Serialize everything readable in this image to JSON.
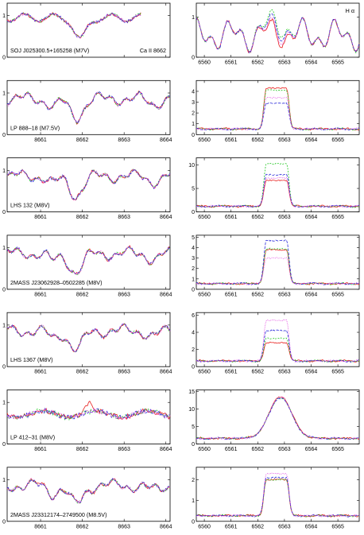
{
  "figure": {
    "left_header": "Ca II 8662",
    "right_header": "H α",
    "ca_x_ticks": [
      "8661",
      "8662",
      "8663",
      "8664"
    ],
    "ha_x_ticks": [
      "6560",
      "6561",
      "6562",
      "6563",
      "6564",
      "6565"
    ]
  },
  "colors": {
    "red": "#e8201e",
    "green": "#22c722",
    "blue": "#2b2bd9",
    "magenta": "#e040e0"
  },
  "chart_data": [
    {
      "type": "line",
      "panel": "Ca II 8662",
      "row": 1,
      "label": "SOJ J025300.5+165258 (M7V)",
      "xlim": [
        8660.2,
        8664.1
      ],
      "ylim": [
        0,
        1.3
      ],
      "yticks": [
        0,
        1
      ]
    },
    {
      "type": "line",
      "panel": "H α",
      "row": 1,
      "xlim": [
        6559.7,
        6565.8
      ],
      "ylim": [
        0,
        1.35
      ],
      "yticks": [
        0,
        1
      ],
      "peaks": {
        "red": 0.78,
        "green": 1.05,
        "blue": 0.95,
        "magenta": 0.85
      }
    },
    {
      "type": "line",
      "panel": "Ca II 8662",
      "row": 2,
      "label": "LP 888–18 (M7.5V)",
      "xlim": [
        8660.2,
        8664.1
      ],
      "ylim": [
        0,
        1.3
      ],
      "yticks": [
        0,
        1
      ]
    },
    {
      "type": "line",
      "panel": "H α",
      "row": 2,
      "xlim": [
        6559.7,
        6565.8
      ],
      "ylim": [
        0,
        5
      ],
      "yticks": [
        0,
        1,
        2,
        3,
        4
      ],
      "peaks": {
        "red": 4.3,
        "green": 4.1,
        "blue": 2.9,
        "magenta": 3.4
      }
    },
    {
      "type": "line",
      "panel": "Ca II 8662",
      "row": 3,
      "label": "LHS 132 (M8V)",
      "xlim": [
        8660.2,
        8664.1
      ],
      "ylim": [
        0,
        1.3
      ],
      "yticks": [
        0,
        1
      ]
    },
    {
      "type": "line",
      "panel": "H α",
      "row": 3,
      "xlim": [
        6559.7,
        6565.8
      ],
      "ylim": [
        0,
        11.5
      ],
      "yticks": [
        0,
        5,
        10
      ],
      "peaks": {
        "red": 6.7,
        "green": 10.2,
        "blue": 7.9,
        "magenta": 7.2
      }
    },
    {
      "type": "line",
      "panel": "Ca II 8662",
      "row": 4,
      "label": "2MASS J23062928–0502285 (M8V)",
      "xlim": [
        8660.2,
        8664.1
      ],
      "ylim": [
        0,
        1.3
      ],
      "yticks": [
        0,
        1
      ]
    },
    {
      "type": "line",
      "panel": "H α",
      "row": 4,
      "xlim": [
        6559.7,
        6565.8
      ],
      "ylim": [
        0,
        5.2
      ],
      "yticks": [
        0,
        1,
        2,
        3,
        4,
        5
      ],
      "peaks": {
        "red": 3.8,
        "green": 3.9,
        "blue": 4.7,
        "magenta": 3.0
      }
    },
    {
      "type": "line",
      "panel": "Ca II 8662",
      "row": 5,
      "label": "LHS 1367 (M8V)",
      "xlim": [
        8660.2,
        8664.1
      ],
      "ylim": [
        0,
        1.3
      ],
      "yticks": [
        0,
        1
      ]
    },
    {
      "type": "line",
      "panel": "H α",
      "row": 5,
      "xlim": [
        6559.7,
        6565.8
      ],
      "ylim": [
        0,
        6.3
      ],
      "yticks": [
        0,
        2,
        4,
        6
      ],
      "peaks": {
        "red": 2.8,
        "green": 3.3,
        "blue": 4.2,
        "magenta": 5.4
      }
    },
    {
      "type": "line",
      "panel": "Ca II 8662",
      "row": 6,
      "label": "LP 412–31 (M8V)",
      "xlim": [
        8660.2,
        8664.1
      ],
      "ylim": [
        0,
        1.3
      ],
      "yticks": [
        0,
        1
      ]
    },
    {
      "type": "line",
      "panel": "H α",
      "row": 6,
      "xlim": [
        6559.7,
        6565.8
      ],
      "ylim": [
        0,
        15.5
      ],
      "yticks": [
        0,
        5,
        10,
        15
      ],
      "peaks": {
        "red": 13.5,
        "green": 13.2,
        "blue": 13.0,
        "magenta": 13.4
      }
    },
    {
      "type": "line",
      "panel": "Ca II 8662",
      "row": 7,
      "label": "2MASS J23312174–2749500 (M8.5V)",
      "xlim": [
        8660.2,
        8664.1
      ],
      "ylim": [
        0,
        1.3
      ],
      "yticks": [
        0,
        1
      ]
    },
    {
      "type": "line",
      "panel": "H α",
      "row": 7,
      "xlim": [
        6559.7,
        6565.8
      ],
      "ylim": [
        0,
        2.6
      ],
      "yticks": [
        0,
        1,
        2
      ],
      "peaks": {
        "red": 2.0,
        "green": 2.0,
        "blue": 2.1,
        "magenta": 2.3
      }
    }
  ]
}
